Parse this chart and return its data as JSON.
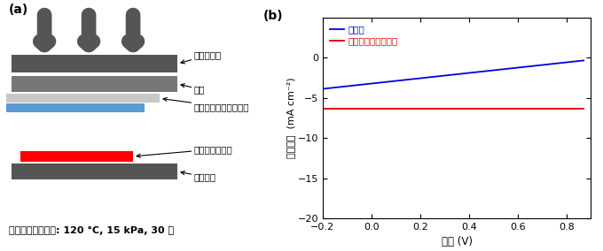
{
  "panel_a_label": "(a)",
  "panel_b_label": "(b)",
  "layer_colors": {
    "dark_gray": "#555555",
    "cloth_gray": "#777777",
    "light_gray": "#c8c8c8",
    "blue": "#5b9bd5",
    "red": "#ff0000",
    "white": "#ffffff"
  },
  "labels": {
    "heater": "ヒーター板",
    "cloth": "布地",
    "hotmelt_film": "ホットメルトフィルム",
    "solar_cell": "超薄型太陽電池",
    "stage": "ステージ",
    "condition": "ホットメルト条件: 120 °C, 15 kPa, 30 秒"
  },
  "legend_labels": [
    "接着前",
    "ホットメルト接着後"
  ],
  "line_colors": [
    "#0000dd",
    "#dd0000"
  ],
  "xlabel": "電圧 (V)",
  "ylabel": "電流密度  (mA cm⁻²)",
  "xlim": [
    -0.2,
    0.9
  ],
  "ylim": [
    -20,
    5
  ],
  "xticks": [
    -0.2,
    0.0,
    0.2,
    0.4,
    0.6,
    0.8
  ],
  "yticks": [
    -20,
    -15,
    -10,
    -5,
    0
  ]
}
